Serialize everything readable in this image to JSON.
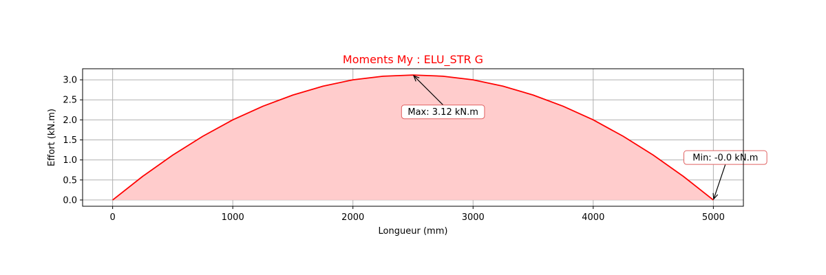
{
  "chart_data": {
    "type": "area",
    "title": "Moments My : ELU_STR G",
    "xlabel": "Longueur (mm)",
    "ylabel": "Effort (kN.m)",
    "xlim": [
      -250,
      5250
    ],
    "ylim": [
      -0.156,
      3.276
    ],
    "xticks": [
      0,
      1000,
      2000,
      3000,
      4000,
      5000
    ],
    "yticks": [
      0.0,
      0.5,
      1.0,
      1.5,
      2.0,
      2.5,
      3.0
    ],
    "xtick_labels": [
      "0",
      "1000",
      "2000",
      "3000",
      "4000",
      "5000"
    ],
    "ytick_labels": [
      "0.0",
      "0.5",
      "1.0",
      "1.5",
      "2.0",
      "2.5",
      "3.0"
    ],
    "grid": true,
    "series": [
      {
        "x": [
          0,
          250,
          500,
          750,
          1000,
          1250,
          1500,
          1750,
          2000,
          2250,
          2500,
          2750,
          3000,
          3250,
          3500,
          3750,
          4000,
          4250,
          4500,
          4750,
          5000
        ],
        "y": [
          0.0,
          0.59,
          1.12,
          1.59,
          2.0,
          2.34,
          2.62,
          2.84,
          3.0,
          3.09,
          3.12,
          3.09,
          3.0,
          2.84,
          2.62,
          2.34,
          2.0,
          1.59,
          1.12,
          0.59,
          0.0
        ],
        "color": "#ff0000",
        "fill_color": "#ffcccc"
      }
    ],
    "annotations": [
      {
        "text": "Max: 3.12 kN.m",
        "point": [
          2500,
          3.12
        ],
        "text_at": [
          2750,
          2.2
        ]
      },
      {
        "text": "Min: -0.0 kN.m",
        "point": [
          5000,
          0.0
        ],
        "text_at": [
          5100,
          1.06
        ]
      }
    ],
    "colors": {
      "title": "#ff0000",
      "grid": "#b0b0b0",
      "annot_border": "#e06060"
    }
  }
}
